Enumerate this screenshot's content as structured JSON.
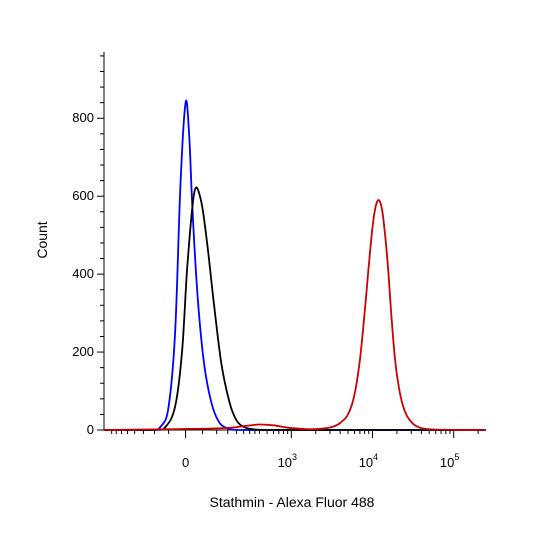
{
  "chart_data": {
    "type": "line",
    "title": "",
    "xlabel": "Stathmin - Alexa Fluor 488",
    "ylabel": "Count",
    "x_scale": "biexponential",
    "xlim": [
      -500,
      250000
    ],
    "ylim": [
      0,
      970
    ],
    "grid": false,
    "legend": "none",
    "y_ticks": [
      {
        "value": 0,
        "label": "0"
      },
      {
        "value": 200,
        "label": "200"
      },
      {
        "value": 400,
        "label": "400"
      },
      {
        "value": 600,
        "label": "600"
      },
      {
        "value": 800,
        "label": "800"
      }
    ],
    "x_ticks": [
      {
        "value": 0,
        "label": "0",
        "exp": ""
      },
      {
        "value": 1000,
        "label": "10",
        "exp": "3"
      },
      {
        "value": 10000,
        "label": "10",
        "exp": "4"
      },
      {
        "value": 100000,
        "label": "10",
        "exp": "5"
      }
    ],
    "series": [
      {
        "color": "#0000ff",
        "x": [
          -500,
          -120,
          -75,
          -50,
          -30,
          -15,
          0,
          10,
          20,
          35,
          55,
          80,
          110,
          150,
          200,
          300,
          1000,
          10000,
          250000
        ],
        "y": [
          0,
          0,
          10,
          60,
          250,
          620,
          840,
          760,
          560,
          340,
          170,
          70,
          20,
          4,
          0,
          0,
          0,
          0,
          0
        ]
      },
      {
        "color": "#000000",
        "x": [
          -500,
          -100,
          -60,
          -30,
          -10,
          5,
          25,
          45,
          65,
          90,
          120,
          160,
          200,
          250,
          320,
          500,
          1000,
          10000,
          250000
        ],
        "y": [
          0,
          0,
          8,
          60,
          200,
          420,
          610,
          590,
          480,
          320,
          170,
          70,
          25,
          8,
          2,
          0,
          0,
          0,
          0
        ]
      },
      {
        "color": "#cc0000",
        "x": [
          -500,
          100,
          250,
          400,
          600,
          900,
          1300,
          1800,
          2500,
          3200,
          4000,
          5000,
          6000,
          7000,
          8000,
          9000,
          10000,
          11000,
          12000,
          13000,
          14000,
          15500,
          17000,
          19000,
          22000,
          26000,
          32000,
          40000,
          60000,
          250000
        ],
        "y": [
          0,
          4,
          10,
          14,
          12,
          6,
          3,
          2,
          4,
          8,
          18,
          40,
          90,
          180,
          300,
          420,
          520,
          575,
          590,
          570,
          520,
          420,
          300,
          180,
          90,
          40,
          15,
          5,
          1,
          0
        ]
      }
    ]
  }
}
